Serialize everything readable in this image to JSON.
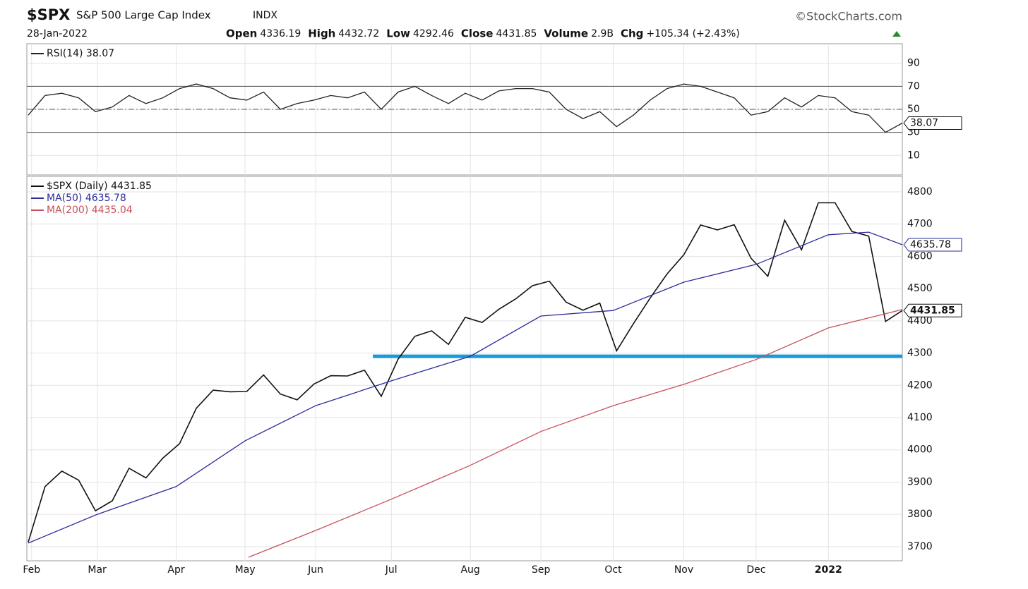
{
  "header": {
    "symbol": "$SPX",
    "name": "S&P 500 Large Cap Index",
    "exchange": "INDX",
    "credit": "©StockCharts.com",
    "date": "28-Jan-2022",
    "stats": [
      {
        "label": "Open",
        "value": "4336.19"
      },
      {
        "label": "High",
        "value": "4432.72"
      },
      {
        "label": "Low",
        "value": "4292.46"
      },
      {
        "label": "Close",
        "value": "4431.85"
      },
      {
        "label": "Volume",
        "value": "2.9B"
      },
      {
        "label": "Chg",
        "value": "+105.34 (+2.43%)"
      }
    ]
  },
  "chart_data": [
    {
      "type": "line",
      "x": [
        0,
        1,
        2,
        3,
        4,
        5,
        6,
        7,
        8,
        9,
        10,
        11,
        12,
        13,
        14,
        15,
        16,
        17,
        18,
        19,
        20,
        21,
        22,
        23,
        24,
        25,
        26,
        27,
        28,
        29,
        30,
        31,
        32,
        33,
        34,
        35,
        36,
        37,
        38,
        39,
        40,
        41,
        42,
        43,
        44,
        45,
        46,
        47,
        48,
        49,
        50,
        51,
        52
      ],
      "series": [
        {
          "name": "RSI(14) 38.07",
          "color": "#222222",
          "values": [
            45,
            62,
            64,
            60,
            48,
            52,
            62,
            55,
            60,
            68,
            72,
            68,
            60,
            58,
            65,
            50,
            55,
            58,
            62,
            60,
            65,
            50,
            65,
            70,
            62,
            55,
            64,
            58,
            66,
            68,
            68,
            65,
            50,
            42,
            48,
            35,
            45,
            58,
            68,
            72,
            70,
            65,
            60,
            45,
            48,
            60,
            52,
            62,
            60,
            48,
            45,
            30,
            38.07
          ]
        }
      ],
      "ylim": [
        -7,
        107
      ],
      "yticks": [
        10,
        30,
        50,
        70,
        90
      ],
      "levels": [
        30,
        50,
        70
      ],
      "last_tag": "38.07"
    },
    {
      "type": "line",
      "xlim": [
        0,
        52
      ],
      "xticks": [
        {
          "value": 0.2,
          "label": "Feb"
        },
        {
          "value": 4.1,
          "label": "Mar"
        },
        {
          "value": 8.8,
          "label": "Apr"
        },
        {
          "value": 12.9,
          "label": "May"
        },
        {
          "value": 17.1,
          "label": "Jun"
        },
        {
          "value": 21.6,
          "label": "Jul"
        },
        {
          "value": 26.3,
          "label": "Aug"
        },
        {
          "value": 30.5,
          "label": "Sep"
        },
        {
          "value": 34.8,
          "label": "Oct"
        },
        {
          "value": 39.0,
          "label": "Nov"
        },
        {
          "value": 43.3,
          "label": "Dec"
        },
        {
          "value": 47.6,
          "label": "2022"
        }
      ],
      "series": [
        {
          "name": "$SPX (Daily) 4431.85",
          "color": "#111111",
          "x": [
            0,
            1,
            2,
            3,
            4,
            5,
            6,
            7,
            8,
            9,
            10,
            11,
            12,
            13,
            14,
            15,
            16,
            17,
            18,
            19,
            20,
            21,
            22,
            23,
            24,
            25,
            26,
            27,
            28,
            29,
            30,
            31,
            32,
            33,
            34,
            35,
            36,
            37,
            38,
            39,
            40,
            41,
            42,
            43,
            44,
            45,
            46,
            47,
            48,
            49,
            50,
            51,
            52
          ],
          "values": [
            3714,
            3886,
            3934,
            3906,
            3811,
            3842,
            3943,
            3913,
            3974,
            4019,
            4129,
            4185,
            4180,
            4181,
            4232,
            4173,
            4155,
            4204,
            4230,
            4229,
            4247,
            4166,
            4281,
            4352,
            4369,
            4327,
            4411,
            4395,
            4436,
            4468,
            4509,
            4523,
            4458,
            4433,
            4455,
            4307,
            4391,
            4471,
            4545,
            4605,
            4697,
            4682,
            4698,
            4594,
            4538,
            4712,
            4620,
            4766,
            4766,
            4677,
            4663,
            4398,
            4431.85
          ]
        },
        {
          "name": "MA(50) 4635.78",
          "color": "#2b2b9c",
          "x": [
            0,
            4.1,
            8.8,
            12.9,
            17.1,
            21.6,
            26.3,
            30.5,
            34.8,
            39.0,
            43.3,
            47.6,
            50,
            52
          ],
          "values": [
            3711,
            3800,
            3886,
            4028,
            4137,
            4214,
            4290,
            4415,
            4432,
            4520,
            4575,
            4667,
            4675,
            4635.78
          ]
        },
        {
          "name": "MA(200) 4435.04",
          "color": "#c8505a",
          "x": [
            13.1,
            17.1,
            21.6,
            26.3,
            30.5,
            34.8,
            39.0,
            43.3,
            47.6,
            52
          ],
          "values": [
            3667,
            3750,
            3847,
            3952,
            4057,
            4137,
            4203,
            4280,
            4378,
            4435.04
          ]
        }
      ],
      "ylim": [
        3656,
        4848
      ],
      "yticks": [
        3700,
        3800,
        3900,
        4000,
        4100,
        4200,
        4300,
        4400,
        4500,
        4600,
        4700,
        4800
      ],
      "support_line": {
        "value": 4290,
        "from": 20.5,
        "color": "#1a9ad6"
      },
      "last_tags": [
        "4635.78",
        "4431.85"
      ]
    }
  ]
}
